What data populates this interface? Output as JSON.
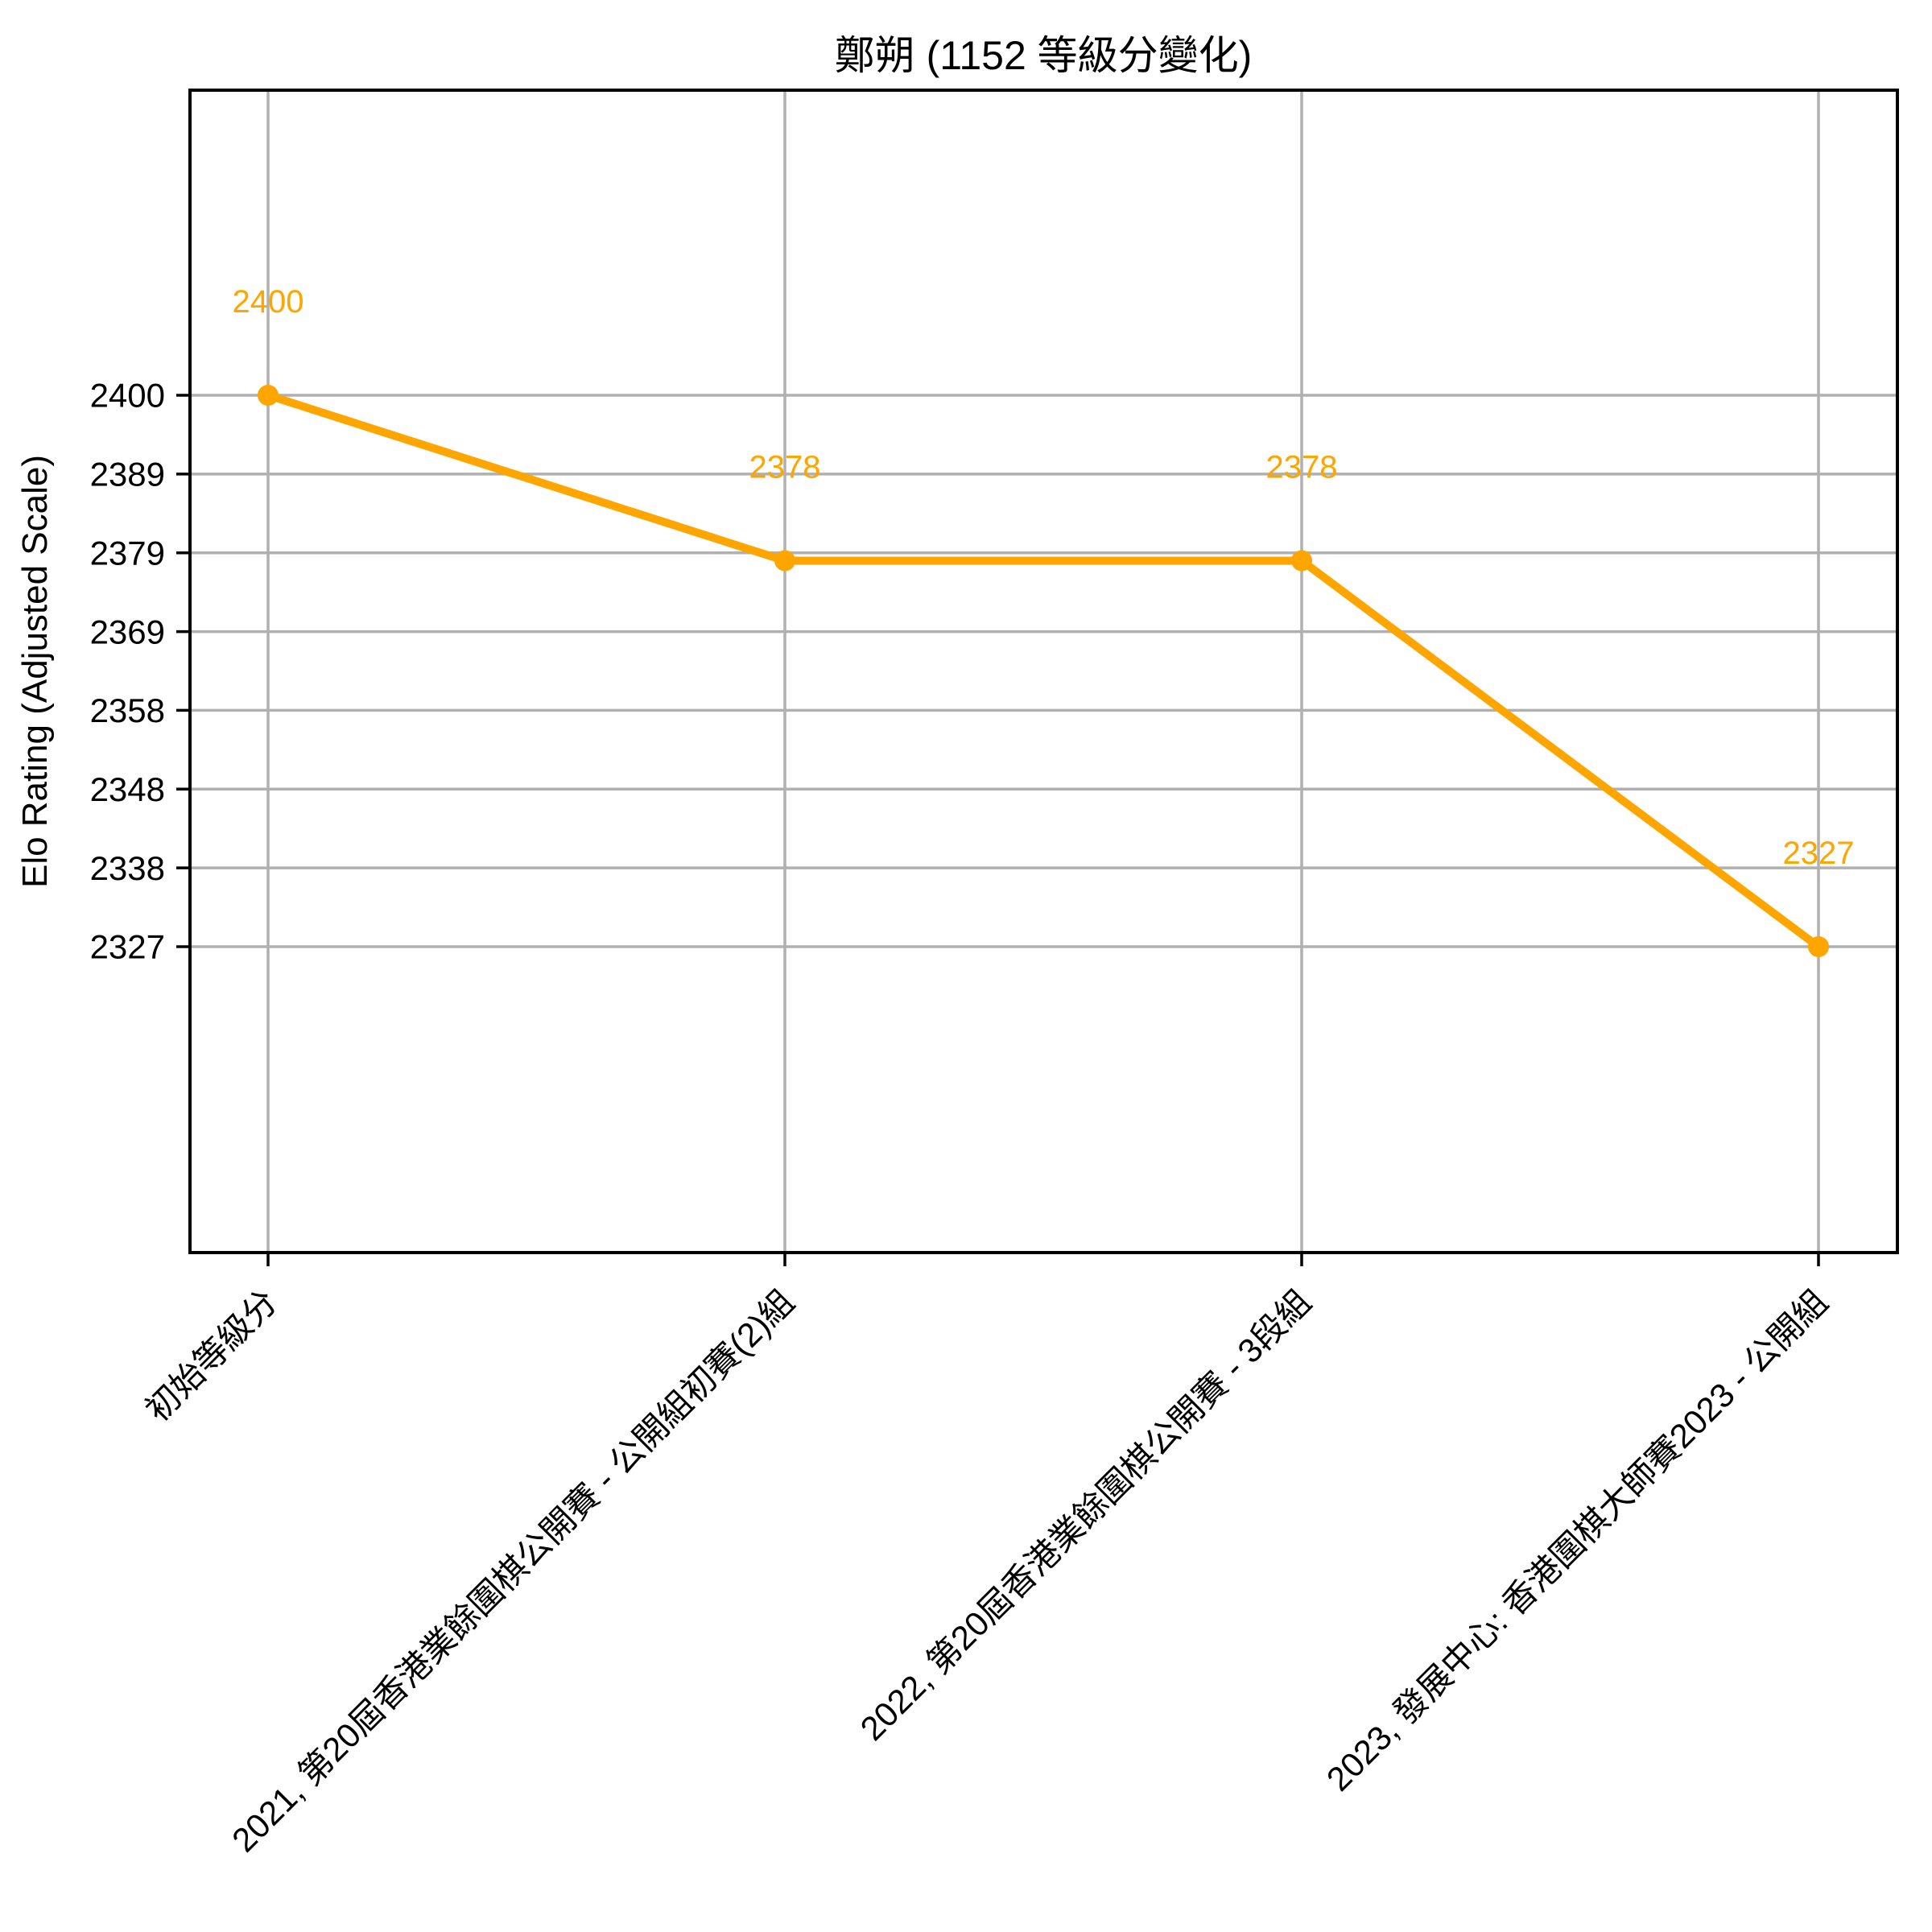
{
  "chart_data": {
    "type": "line",
    "title": "鄭朔 (1152 等級分變化)",
    "ylabel": "Elo Rating (Adjusted Scale)",
    "xlabel": "",
    "categories": [
      "初始等級分",
      "2021, 第20屆香港業餘圍棋公開賽 - 公開組初賽(2)組",
      "2022, 第20屆香港業餘圍棋公開賽 - 3段組",
      "2023, 發展中心: 香港圍棋大師賽2023 - 公開組"
    ],
    "values": [
      2400,
      2378,
      2378,
      2327
    ],
    "point_labels": [
      "2400",
      "2378",
      "2378",
      "2327"
    ],
    "y_ticks": [
      2400,
      2389,
      2379,
      2369,
      2358,
      2348,
      2338,
      2327
    ],
    "y_scale": "adjusted (ticks evenly spaced, linear interpolation between adjacent ticks)",
    "x_tick_rotation": 45,
    "grid": true,
    "legend": "none",
    "colors": {
      "line": "#FFA500",
      "marker": "#FFA500",
      "point_label": "#FFA500",
      "grid": "#B0B0B0",
      "spine": "#000000",
      "text": "#000000",
      "background": "#FFFFFF"
    }
  }
}
